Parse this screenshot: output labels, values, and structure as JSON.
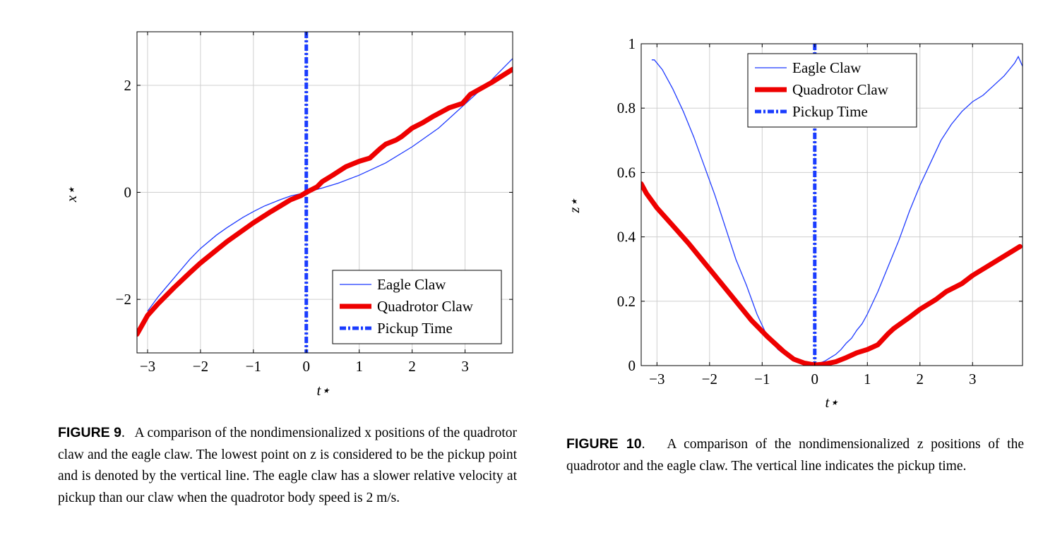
{
  "figures": [
    {
      "id": "fig9",
      "caption_label": "FIGURE 9",
      "caption_text": "A comparison of the nondimensionalized x positions of the quadrotor claw and the eagle claw. The lowest point on z is considered to be the pickup point and is denoted by the vertical line. The eagle claw has a slower relative velocity at pickup than our claw when the quadrotor body speed is 2 m/s."
    },
    {
      "id": "fig10",
      "caption_label": "FIGURE 10",
      "caption_text": "A comparison of the nondimensionalized z positions of the quadrotor and the eagle claw. The vertical line indicates the pickup time."
    }
  ],
  "colors": {
    "eagle": "#1f3bff",
    "quadrotor": "#ee0000",
    "pickup": "#1a3cff",
    "grid": "#cfcfcf"
  },
  "chart_data": [
    {
      "type": "line",
      "xlabel": "t⋆",
      "ylabel": "x⋆",
      "xlim": [
        -3.2,
        3.9
      ],
      "ylim": [
        -3.0,
        3.0
      ],
      "xticks": [
        -3,
        -2,
        -1,
        0,
        1,
        2,
        3
      ],
      "xtick_labels": [
        "−3",
        "−2",
        "−1",
        "0",
        "1",
        "2",
        "3"
      ],
      "yticks": [
        -2,
        0,
        2
      ],
      "ytick_labels": [
        "−2",
        "0",
        "2"
      ],
      "grid": true,
      "legend_position": "bottom-right",
      "vline": {
        "name": "Pickup Time",
        "x": 0
      },
      "series": [
        {
          "name": "Eagle Claw",
          "style": "thin",
          "x": [
            -3.0,
            -2.8,
            -2.5,
            -2.2,
            -2.0,
            -1.7,
            -1.5,
            -1.2,
            -1.0,
            -0.8,
            -0.5,
            -0.3,
            0.0,
            0.3,
            0.6,
            1.0,
            1.5,
            2.0,
            2.5,
            3.0,
            3.5,
            3.9
          ],
          "y": [
            -2.22,
            -1.95,
            -1.6,
            -1.25,
            -1.05,
            -0.8,
            -0.66,
            -0.47,
            -0.36,
            -0.26,
            -0.14,
            -0.07,
            0.0,
            0.08,
            0.17,
            0.32,
            0.55,
            0.85,
            1.2,
            1.65,
            2.1,
            2.5
          ]
        },
        {
          "name": "Quadrotor Claw",
          "style": "thick",
          "x": [
            -3.2,
            -3.0,
            -2.8,
            -2.5,
            -2.2,
            -2.0,
            -1.7,
            -1.5,
            -1.2,
            -1.0,
            -0.7,
            -0.5,
            -0.3,
            -0.1,
            0.0,
            0.2,
            0.3,
            0.5,
            0.75,
            1.0,
            1.2,
            1.4,
            1.5,
            1.7,
            1.8,
            2.0,
            2.2,
            2.4,
            2.7,
            2.95,
            3.1,
            3.5,
            3.9
          ],
          "y": [
            -2.65,
            -2.3,
            -2.08,
            -1.78,
            -1.5,
            -1.32,
            -1.08,
            -0.92,
            -0.71,
            -0.57,
            -0.38,
            -0.26,
            -0.14,
            -0.06,
            0.0,
            0.1,
            0.2,
            0.32,
            0.48,
            0.58,
            0.64,
            0.82,
            0.9,
            0.98,
            1.04,
            1.2,
            1.3,
            1.42,
            1.58,
            1.66,
            1.83,
            2.05,
            2.3
          ]
        }
      ]
    },
    {
      "type": "line",
      "xlabel": "t⋆",
      "ylabel": "z⋆",
      "xlim": [
        -3.3,
        3.95
      ],
      "ylim": [
        0,
        1
      ],
      "xticks": [
        -3,
        -2,
        -1,
        0,
        1,
        2,
        3
      ],
      "xtick_labels": [
        "−3",
        "−2",
        "−1",
        "0",
        "1",
        "2",
        "3"
      ],
      "yticks": [
        0,
        0.2,
        0.4,
        0.6,
        0.8,
        1
      ],
      "ytick_labels": [
        "0",
        "0.2",
        "0.4",
        "0.6",
        "0.8",
        "1"
      ],
      "grid": true,
      "legend_position": "top-center",
      "vline": {
        "name": "Pickup Time",
        "x": 0
      },
      "series": [
        {
          "name": "Eagle Claw",
          "style": "thin",
          "x": [
            -3.1,
            -3.05,
            -2.9,
            -2.7,
            -2.5,
            -2.3,
            -2.1,
            -1.9,
            -1.7,
            -1.5,
            -1.3,
            -1.1,
            -0.9,
            -0.7,
            -0.5,
            -0.4,
            -0.3,
            -0.2,
            -0.1,
            0.0,
            0.1,
            0.2,
            0.3,
            0.4,
            0.5,
            0.6,
            0.7,
            0.8,
            0.9,
            1.0,
            1.2,
            1.4,
            1.6,
            1.8,
            2.0,
            2.2,
            2.4,
            2.6,
            2.8,
            3.0,
            3.2,
            3.4,
            3.6,
            3.7,
            3.8,
            3.87,
            3.95
          ],
          "y": [
            0.95,
            0.95,
            0.92,
            0.86,
            0.79,
            0.71,
            0.62,
            0.53,
            0.43,
            0.33,
            0.25,
            0.16,
            0.09,
            0.05,
            0.025,
            0.015,
            0.008,
            0.004,
            0.002,
            0.002,
            0.008,
            0.015,
            0.025,
            0.035,
            0.05,
            0.07,
            0.085,
            0.11,
            0.13,
            0.16,
            0.23,
            0.31,
            0.39,
            0.48,
            0.56,
            0.63,
            0.7,
            0.75,
            0.79,
            0.82,
            0.84,
            0.87,
            0.9,
            0.92,
            0.94,
            0.96,
            0.93
          ]
        },
        {
          "name": "Quadrotor Claw",
          "style": "thick",
          "x": [
            -3.3,
            -3.2,
            -3.0,
            -2.7,
            -2.4,
            -2.1,
            -1.8,
            -1.5,
            -1.2,
            -0.9,
            -0.6,
            -0.4,
            -0.2,
            0.0,
            0.2,
            0.4,
            0.6,
            0.8,
            1.0,
            1.2,
            1.4,
            1.5,
            1.8,
            2.0,
            2.3,
            2.5,
            2.8,
            3.0,
            3.2,
            3.5,
            3.75,
            3.9
          ],
          "y": [
            0.565,
            0.535,
            0.49,
            0.435,
            0.38,
            0.32,
            0.26,
            0.2,
            0.14,
            0.09,
            0.045,
            0.02,
            0.008,
            0.002,
            0.005,
            0.012,
            0.025,
            0.04,
            0.05,
            0.065,
            0.1,
            0.115,
            0.15,
            0.175,
            0.205,
            0.23,
            0.255,
            0.28,
            0.3,
            0.33,
            0.355,
            0.37
          ]
        }
      ]
    }
  ]
}
